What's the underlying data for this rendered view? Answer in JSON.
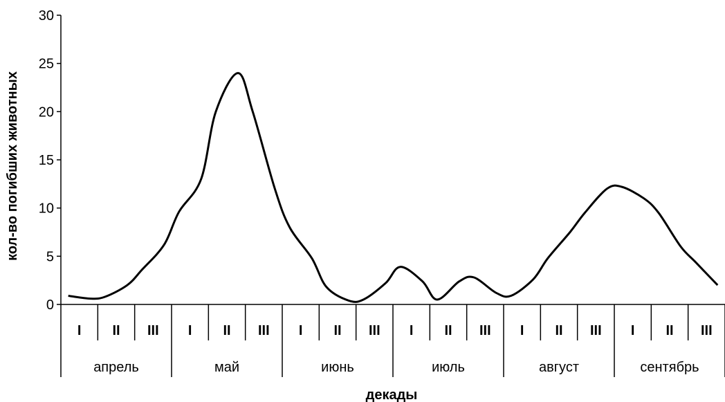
{
  "chart_data": {
    "type": "line",
    "title": "",
    "xlabel": "декады",
    "ylabel": "кол-во погибших животных",
    "ylim": [
      0,
      30
    ],
    "y_ticks": [
      "0",
      "5",
      "10",
      "15",
      "20",
      "25",
      "30"
    ],
    "months": [
      "апрель",
      "май",
      "июнь",
      "июль",
      "август",
      "сентябрь"
    ],
    "decades": [
      "I",
      "II",
      "III",
      "I",
      "II",
      "III",
      "I",
      "II",
      "III",
      "I",
      "II",
      "III",
      "I",
      "II",
      "III",
      "I",
      "II",
      "III"
    ],
    "grid": false,
    "series": [
      {
        "x": [
          0.2,
          0.8,
          1.2,
          1.8,
          2.2,
          2.8,
          3.2,
          3.8,
          4.2,
          4.8,
          5.2,
          5.8,
          6.2,
          6.8,
          7.2,
          7.8,
          8.2,
          8.8,
          9.2,
          9.8,
          10.2,
          10.8,
          11.2,
          11.8,
          12.2,
          12.8,
          13.2,
          13.8,
          14.2,
          14.8,
          15.2,
          15.8,
          16.2,
          16.8,
          17.2,
          17.8
        ],
        "values": [
          0.9,
          0.6,
          0.8,
          2.0,
          3.6,
          6.2,
          9.6,
          13.0,
          20.0,
          24.0,
          20.0,
          12.0,
          8.0,
          4.8,
          1.8,
          0.4,
          0.5,
          2.2,
          3.9,
          2.4,
          0.5,
          2.4,
          2.8,
          1.2,
          0.9,
          2.6,
          4.8,
          7.5,
          9.5,
          12.0,
          12.2,
          11.0,
          9.5,
          6.0,
          4.4,
          2.0
        ]
      }
    ]
  }
}
